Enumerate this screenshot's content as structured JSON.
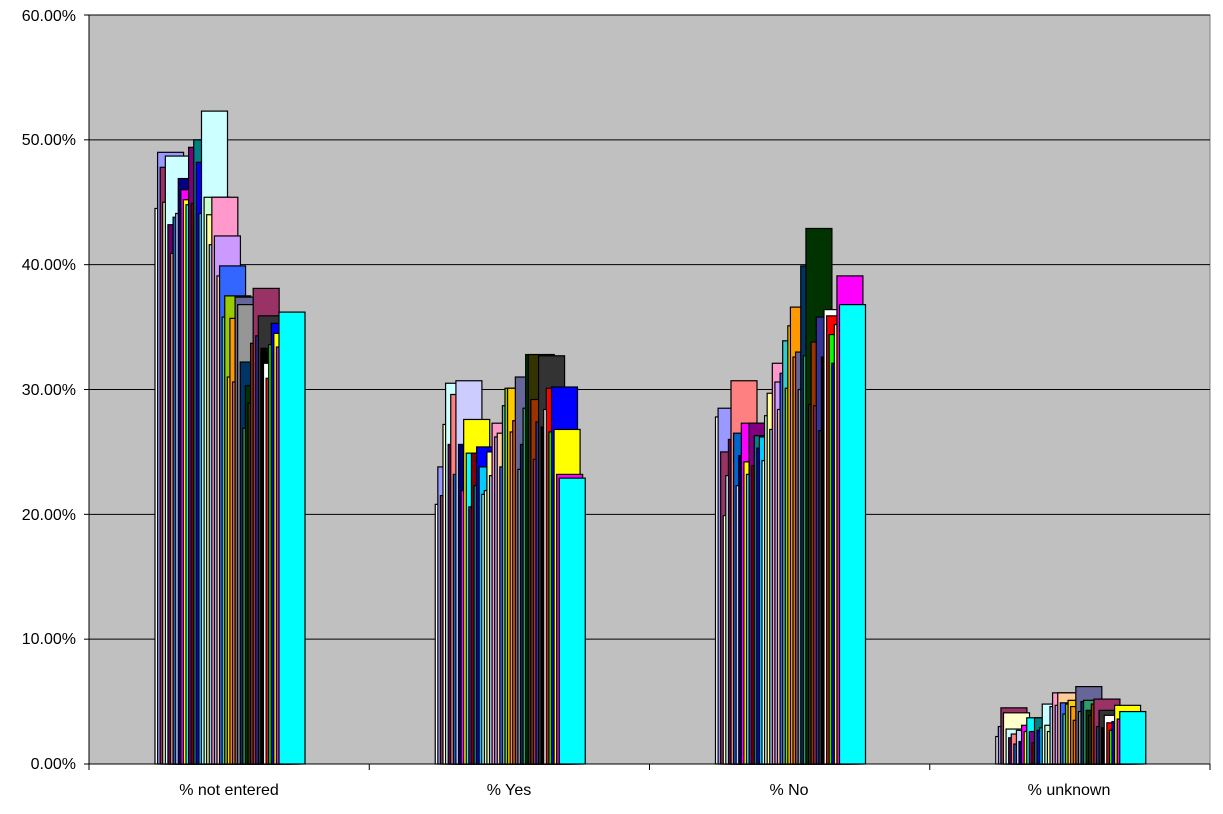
{
  "chart_data": {
    "type": "bar",
    "categories": [
      "% not entered",
      "% Yes",
      "% No",
      "% unknown"
    ],
    "ylim": [
      0,
      0.6
    ],
    "yticks": [
      "0.00%",
      "10.00%",
      "20.00%",
      "30.00%",
      "40.00%",
      "50.00%",
      "60.00%"
    ],
    "grid": true,
    "legend": "none",
    "plot_background": "#c0c0c0",
    "series": [
      {
        "color": "#ffffff",
        "values": [
          0.445,
          0.208,
          0.278,
          0.022
        ]
      },
      {
        "color": "#9999ff",
        "values": [
          0.49,
          0.238,
          0.285,
          0.03
        ]
      },
      {
        "color": "#993366",
        "values": [
          0.478,
          0.215,
          0.25,
          0.045
        ]
      },
      {
        "color": "#ffffcc",
        "values": [
          0.45,
          0.272,
          0.199,
          0.041
        ]
      },
      {
        "color": "#ccffff",
        "values": [
          0.487,
          0.305,
          0.231,
          0.028
        ]
      },
      {
        "color": "#660066",
        "values": [
          0.432,
          0.256,
          0.26,
          0.021
        ]
      },
      {
        "color": "#ff8080",
        "values": [
          0.409,
          0.296,
          0.307,
          0.024
        ]
      },
      {
        "color": "#0066cc",
        "values": [
          0.438,
          0.232,
          0.265,
          0.016
        ]
      },
      {
        "color": "#ccccff",
        "values": [
          0.441,
          0.307,
          0.223,
          0.027
        ]
      },
      {
        "color": "#000080",
        "values": [
          0.469,
          0.256,
          0.247,
          0.018
        ]
      },
      {
        "color": "#ff00ff",
        "values": [
          0.46,
          0.219,
          0.273,
          0.031
        ]
      },
      {
        "color": "#ffff00",
        "values": [
          0.452,
          0.276,
          0.242,
          0.026
        ]
      },
      {
        "color": "#00ffff",
        "values": [
          0.448,
          0.249,
          0.232,
          0.037
        ]
      },
      {
        "color": "#800080",
        "values": [
          0.494,
          0.206,
          0.273,
          0.026
        ]
      },
      {
        "color": "#800000",
        "values": [
          0.449,
          0.249,
          0.239,
          0.017
        ]
      },
      {
        "color": "#008080",
        "values": [
          0.5,
          0.223,
          0.263,
          0.037
        ]
      },
      {
        "color": "#0000ff",
        "values": [
          0.482,
          0.254,
          0.253,
          0.027
        ]
      },
      {
        "color": "#00ccff",
        "values": [
          0.441,
          0.238,
          0.262,
          0.029
        ]
      },
      {
        "color": "#ccffff",
        "values": [
          0.523,
          0.216,
          0.243,
          0.048
        ]
      },
      {
        "color": "#ccffcc",
        "values": [
          0.454,
          0.219,
          0.279,
          0.031
        ]
      },
      {
        "color": "#ffff99",
        "values": [
          0.44,
          0.25,
          0.297,
          0.026
        ]
      },
      {
        "color": "#99ccff",
        "values": [
          0.416,
          0.231,
          0.268,
          0.046
        ]
      },
      {
        "color": "#ff99cc",
        "values": [
          0.454,
          0.273,
          0.321,
          0.057
        ]
      },
      {
        "color": "#cc99ff",
        "values": [
          0.423,
          0.262,
          0.306,
          0.047
        ]
      },
      {
        "color": "#ffcc99",
        "values": [
          0.391,
          0.265,
          0.284,
          0.057
        ]
      },
      {
        "color": "#3366ff",
        "values": [
          0.399,
          0.238,
          0.313,
          0.049
        ]
      },
      {
        "color": "#33cccc",
        "values": [
          0.358,
          0.287,
          0.339,
          0.04
        ]
      },
      {
        "color": "#99cc00",
        "values": [
          0.375,
          0.301,
          0.301,
          0.048
        ]
      },
      {
        "color": "#ffcc00",
        "values": [
          0.31,
          0.301,
          0.351,
          0.051
        ]
      },
      {
        "color": "#ff9900",
        "values": [
          0.357,
          0.266,
          0.366,
          0.046
        ]
      },
      {
        "color": "#ff6600",
        "values": [
          0.306,
          0.275,
          0.326,
          0.035
        ]
      },
      {
        "color": "#666699",
        "values": [
          0.374,
          0.31,
          0.33,
          0.062
        ]
      },
      {
        "color": "#969696",
        "values": [
          0.368,
          0.236,
          0.3,
          0.042
        ]
      },
      {
        "color": "#003366",
        "values": [
          0.322,
          0.256,
          0.399,
          0.05
        ]
      },
      {
        "color": "#339966",
        "values": [
          0.269,
          0.285,
          0.327,
          0.051
        ]
      },
      {
        "color": "#003300",
        "values": [
          0.303,
          0.328,
          0.429,
          0.043
        ]
      },
      {
        "color": "#333300",
        "values": [
          0.289,
          0.328,
          0.288,
          0.039
        ]
      },
      {
        "color": "#993300",
        "values": [
          0.337,
          0.292,
          0.338,
          0.048
        ]
      },
      {
        "color": "#993366",
        "values": [
          0.381,
          0.244,
          0.287,
          0.052
        ]
      },
      {
        "color": "#333399",
        "values": [
          0.343,
          0.274,
          0.358,
          0.03
        ]
      },
      {
        "color": "#333333",
        "values": [
          0.359,
          0.327,
          0.267,
          0.043
        ]
      },
      {
        "color": "#000000",
        "values": [
          0.333,
          0.27,
          0.326,
          0.029
        ]
      },
      {
        "color": "#ffffff",
        "values": [
          0.321,
          0.284,
          0.364,
          0.039
        ]
      },
      {
        "color": "#ff0000",
        "values": [
          0.309,
          0.301,
          0.359,
          0.033
        ]
      },
      {
        "color": "#00ff00",
        "values": [
          0.336,
          0.266,
          0.344,
          0.027
        ]
      },
      {
        "color": "#0000ff",
        "values": [
          0.353,
          0.302,
          0.321,
          0.034
        ]
      },
      {
        "color": "#ffff00",
        "values": [
          0.345,
          0.268,
          0.352,
          0.047
        ]
      },
      {
        "color": "#ff00ff",
        "values": [
          0.334,
          0.232,
          0.391,
          0.036
        ]
      },
      {
        "color": "#00ffff",
        "values": [
          0.362,
          0.229,
          0.368,
          0.042
        ]
      }
    ]
  }
}
